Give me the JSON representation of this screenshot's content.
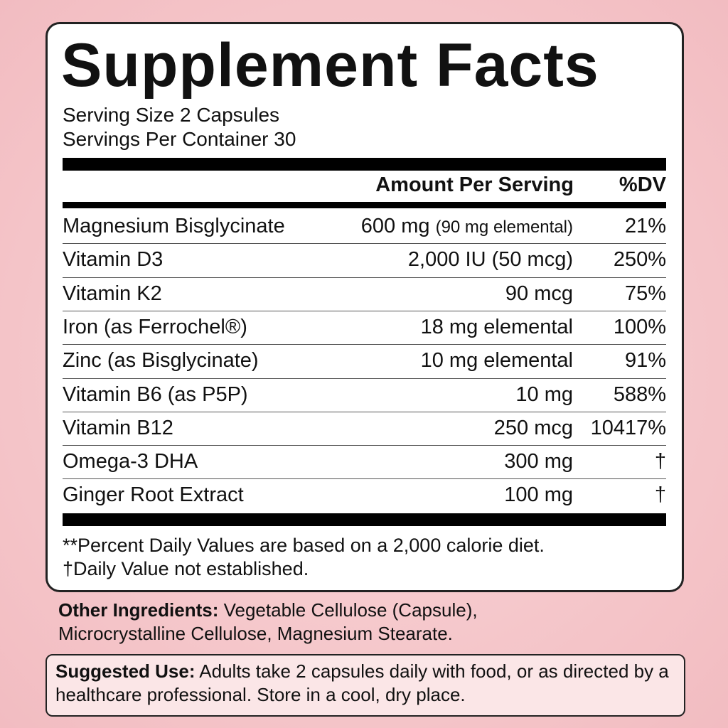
{
  "header": {
    "title": "Supplement Facts",
    "serving_size": "Serving Size 2 Capsules",
    "servings_per_container": "Servings Per Container 30"
  },
  "table": {
    "columns": [
      "Amount Per Serving",
      "%DV"
    ],
    "rows": [
      {
        "name": "Magnesium Bisglycinate",
        "amount": "600 mg",
        "note": "(90 mg elemental)",
        "dv": "21%"
      },
      {
        "name": "Vitamin D3",
        "amount": "2,000 IU (50 mcg)",
        "dv": "250%"
      },
      {
        "name": "Vitamin K2",
        "amount": "90 mcg",
        "dv": "75%"
      },
      {
        "name": "Iron (as Ferrochel®)",
        "amount": "18 mg elemental",
        "dv": "100%"
      },
      {
        "name": "Zinc (as Bisglycinate)",
        "amount": "10 mg elemental",
        "dv": "91%"
      },
      {
        "name": "Vitamin B6 (as P5P)",
        "amount": "10 mg",
        "dv": "588%"
      },
      {
        "name": "Vitamin B12",
        "amount": "250 mcg",
        "dv": "10417%"
      },
      {
        "name": "Omega-3 DHA",
        "amount": "300 mg",
        "dv": "†"
      },
      {
        "name": "Ginger Root Extract",
        "amount": "100 mg",
        "dv": "†"
      }
    ]
  },
  "footnotes": [
    "**Percent Daily Values are based on a 2,000 calorie diet.",
    "†Daily Value not established."
  ],
  "other_ingredients": {
    "label": "Other Ingredients:",
    "text": "Vegetable Cellulose (Capsule), Microcrystalline Cellulose, Magnesium Stearate."
  },
  "suggested_use": {
    "label": "Suggested Use:",
    "text": "Adults take 2 capsules daily with food, or as directed by a healthcare professional. Store in a cool, dry place."
  }
}
